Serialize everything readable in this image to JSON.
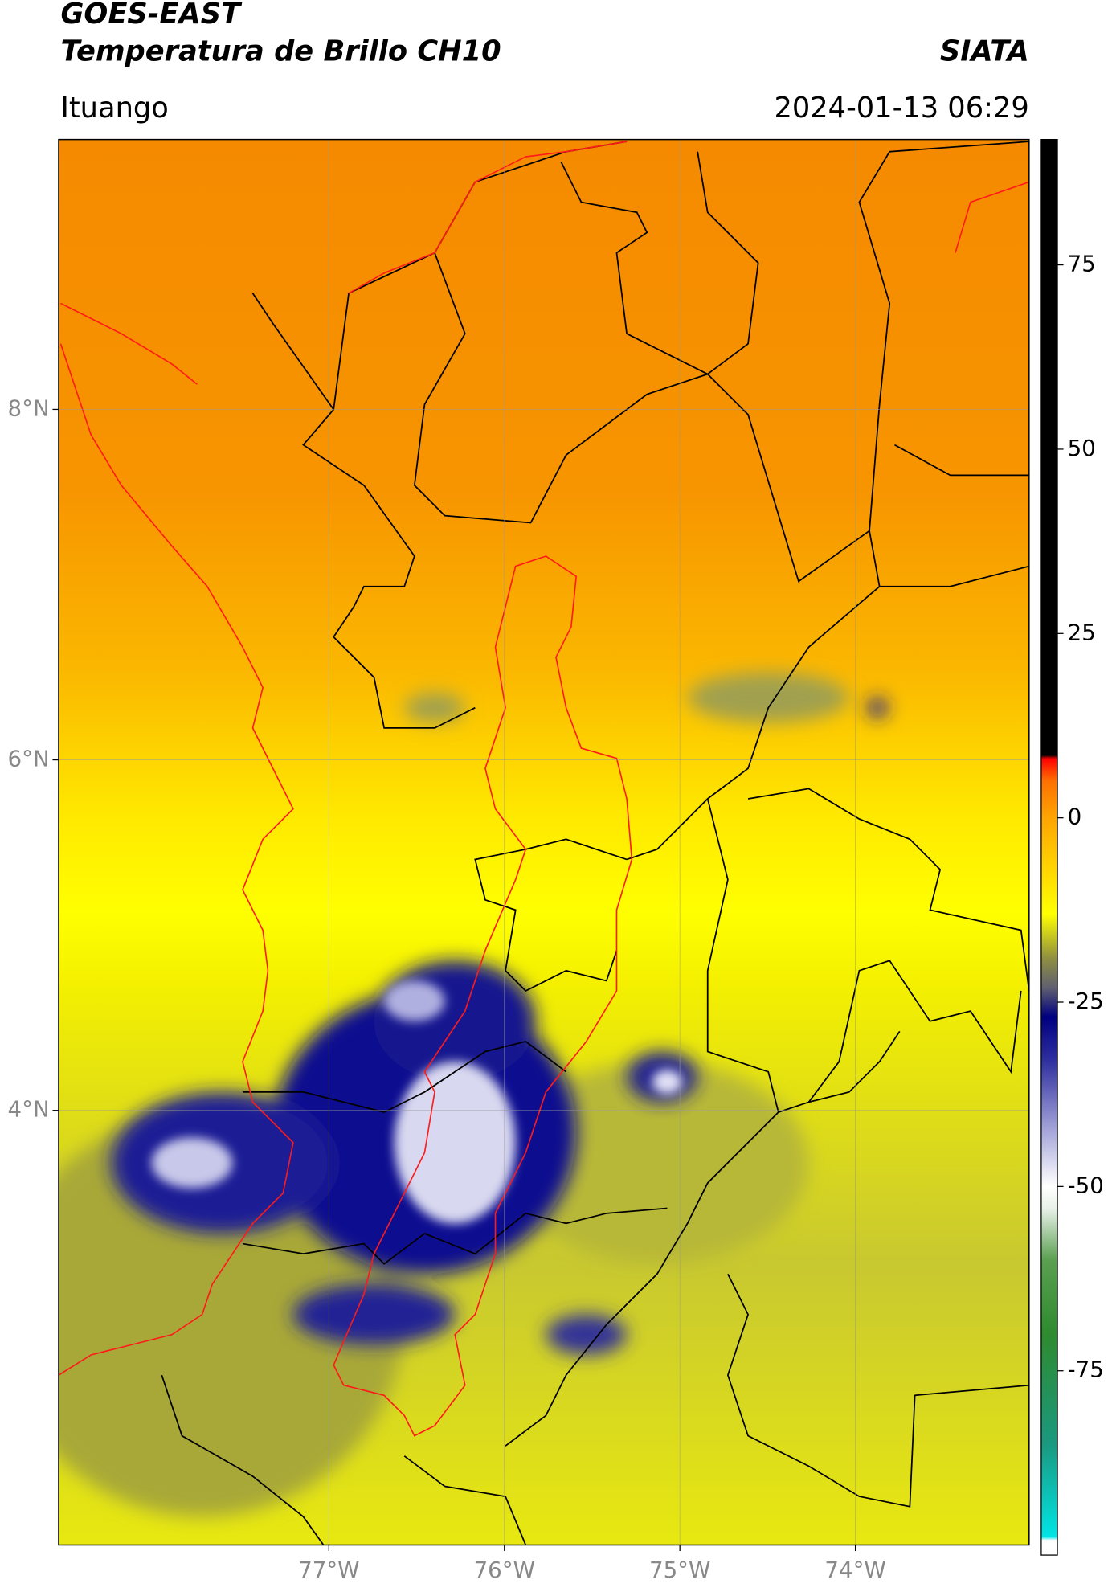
{
  "chart_data": {
    "type": "map",
    "title": "GOES-EAST",
    "subtitle": "Temperatura de Brillo CH10",
    "source": "SIATA",
    "location": "Ituango",
    "timestamp": "2024-01-13 06:29",
    "xlim": [
      -78.54,
      -73.01
    ],
    "ylim": [
      1.52,
      9.54
    ],
    "xticks": [
      {
        "value": -77,
        "label": "77°W"
      },
      {
        "value": -76,
        "label": "76°W"
      },
      {
        "value": -75,
        "label": "75°W"
      },
      {
        "value": -74,
        "label": "74°W"
      }
    ],
    "yticks": [
      {
        "value": 4,
        "label": "4°N"
      },
      {
        "value": 6,
        "label": "6°N"
      },
      {
        "value": 8,
        "label": "8°N"
      }
    ],
    "grid": true,
    "colorbar": {
      "clim": [
        -100,
        92
      ],
      "ticks": [
        -75,
        -50,
        -25,
        0,
        25,
        50,
        75
      ],
      "colormap": [
        {
          "value": -100,
          "color": "#ffffff"
        },
        {
          "value": -98,
          "color": "#ffffff"
        },
        {
          "value": -97.5,
          "color": "#00e5e5"
        },
        {
          "value": -85,
          "color": "#1a9980"
        },
        {
          "value": -70,
          "color": "#2e8b2e"
        },
        {
          "value": -60,
          "color": "#5aa050"
        },
        {
          "value": -53,
          "color": "#e8f0e8"
        },
        {
          "value": -50,
          "color": "#ffffff"
        },
        {
          "value": -42,
          "color": "#a0a0d8"
        },
        {
          "value": -33,
          "color": "#3030a0"
        },
        {
          "value": -27,
          "color": "#000080"
        },
        {
          "value": -23,
          "color": "#606070"
        },
        {
          "value": -19,
          "color": "#909040"
        },
        {
          "value": -13,
          "color": "#ffff00"
        },
        {
          "value": 0,
          "color": "#ffa500"
        },
        {
          "value": 5,
          "color": "#ff7000"
        },
        {
          "value": 8,
          "color": "#ff0000"
        },
        {
          "value": 8.5,
          "color": "#000000"
        },
        {
          "value": 92,
          "color": "#000000"
        }
      ]
    }
  }
}
